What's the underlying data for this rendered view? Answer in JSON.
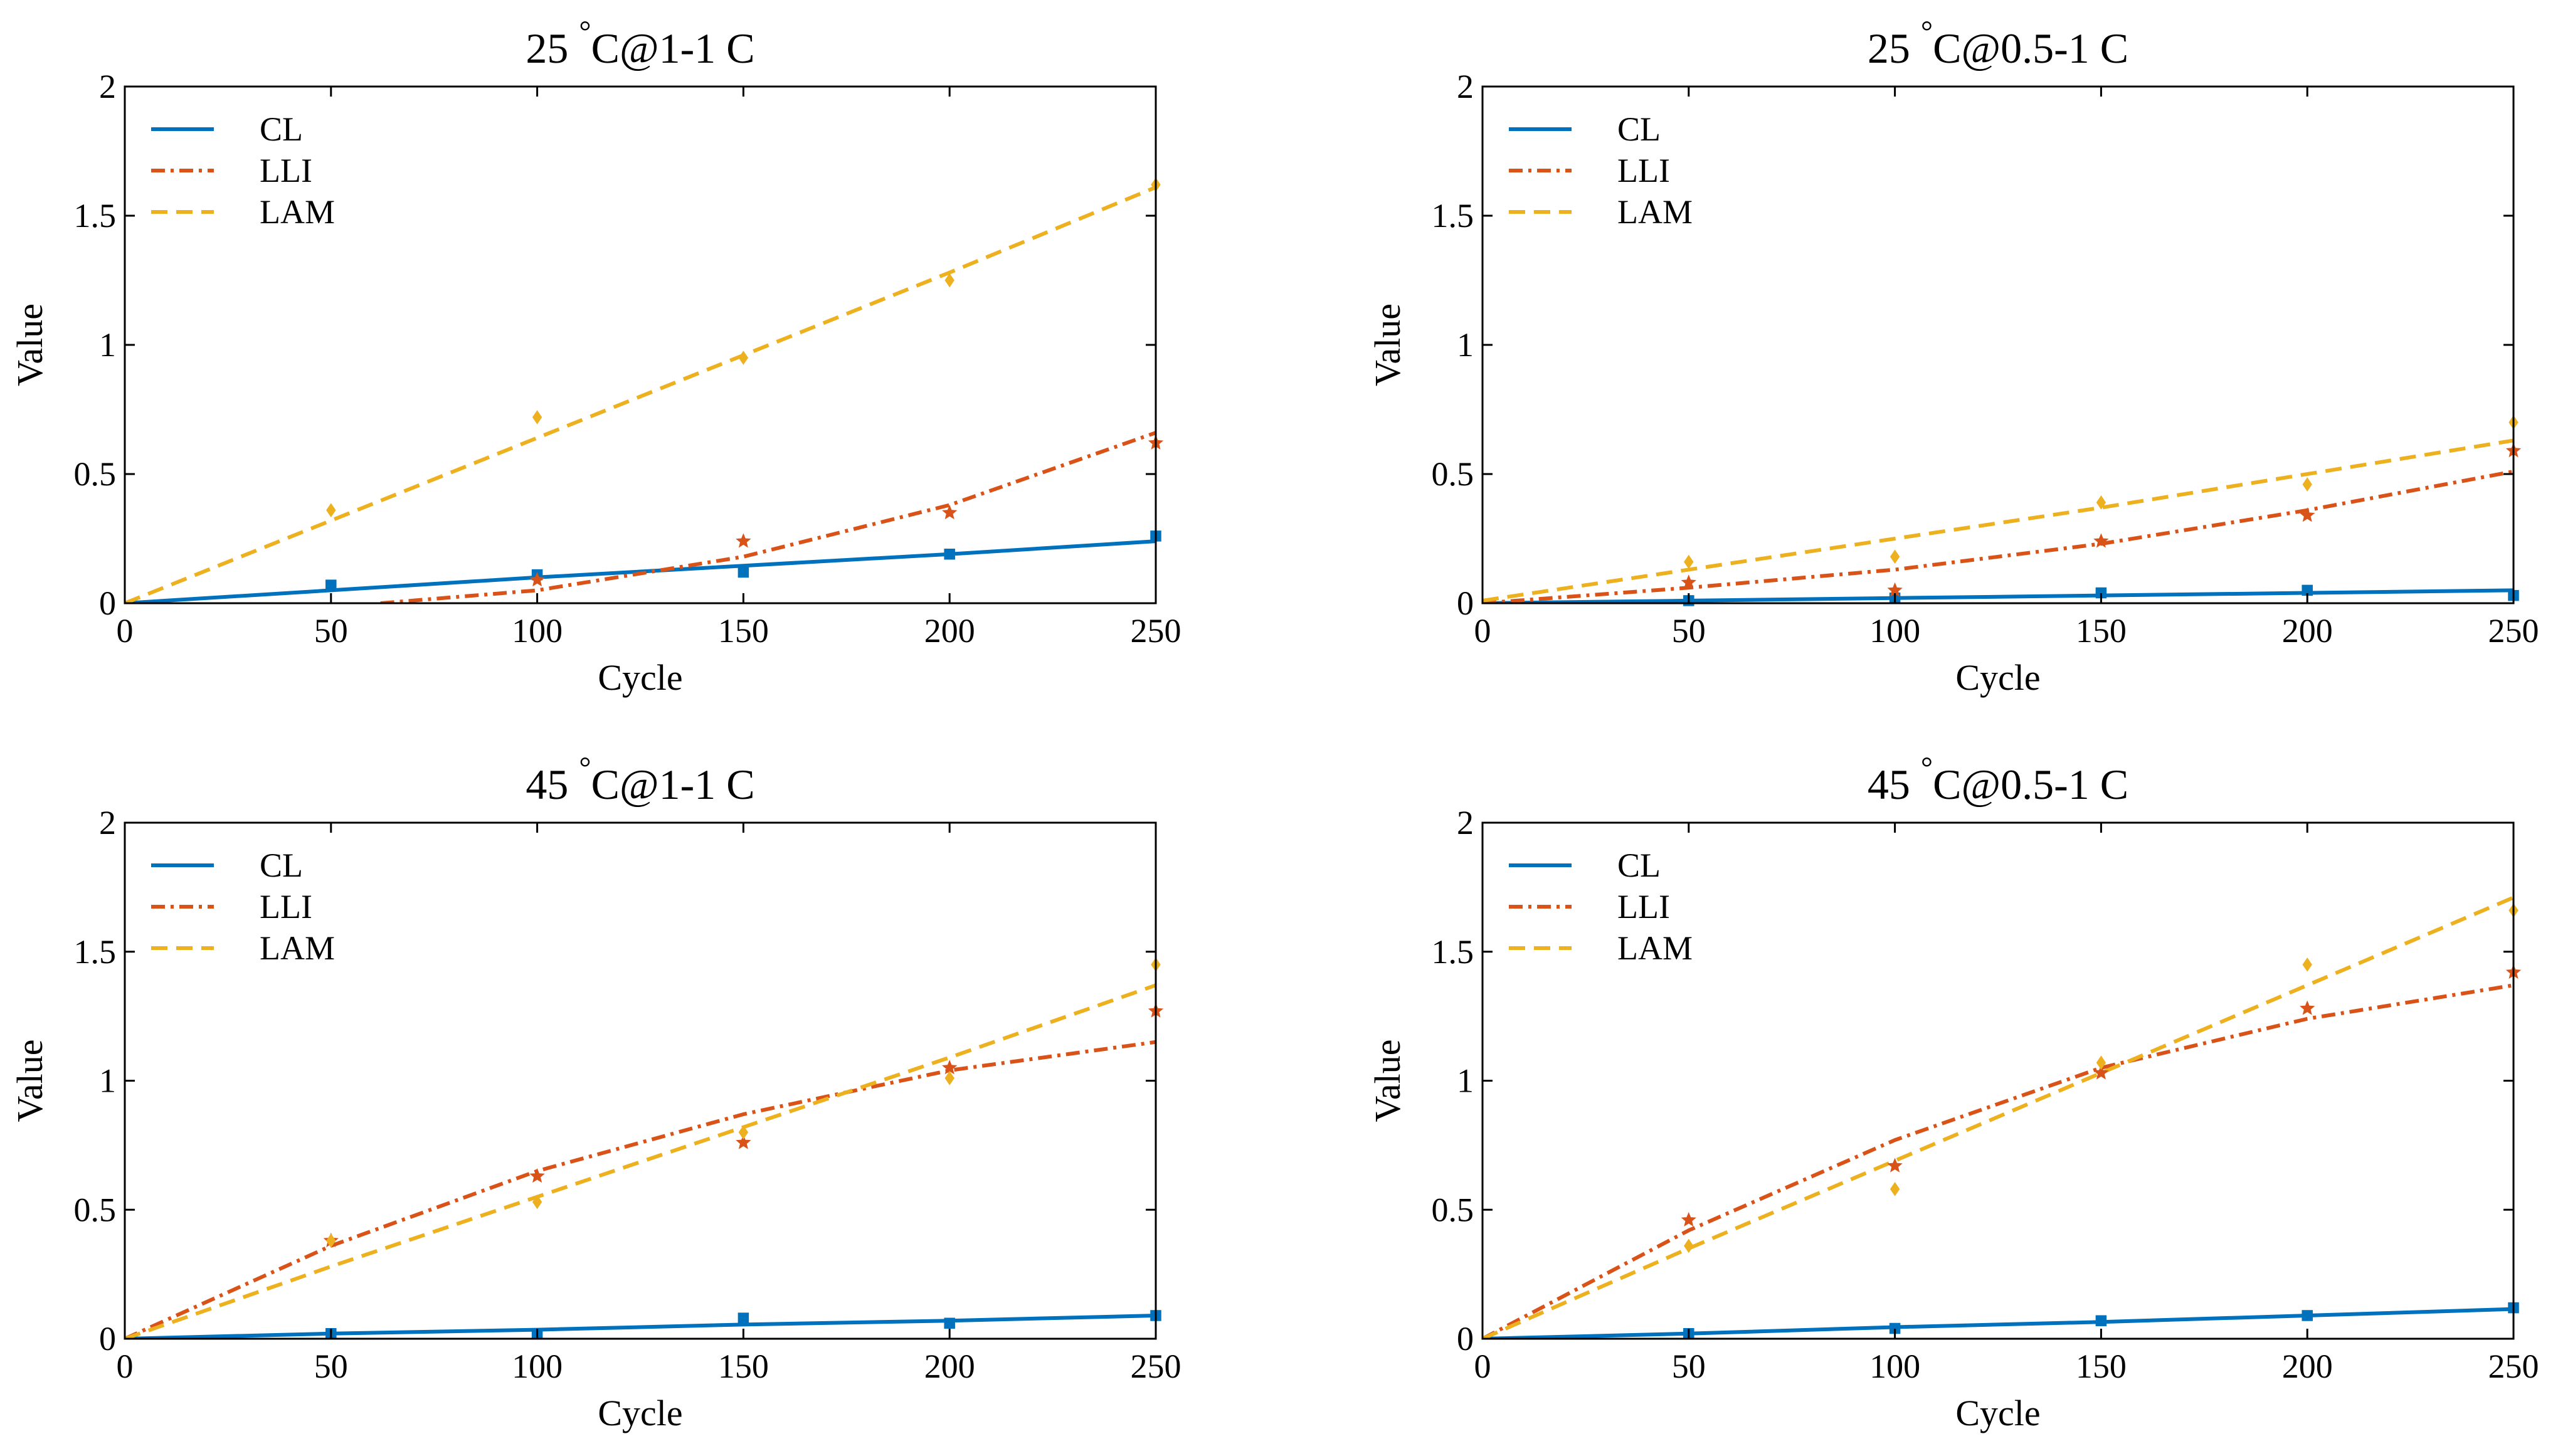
{
  "colors": {
    "CL": "#0072BD",
    "LLI": "#D95319",
    "LAM": "#EDB120"
  },
  "chart_data": [
    {
      "type": "line",
      "title_num": "25",
      "title_deg": "°",
      "title_rest": "C@1-1 C",
      "xlabel": "Cycle",
      "ylabel": "Value",
      "xlim": [
        0,
        250
      ],
      "ylim": [
        0,
        2
      ],
      "xticks": [
        0,
        50,
        100,
        150,
        200,
        250
      ],
      "yticks": [
        0,
        0.5,
        1,
        1.5,
        2
      ],
      "yticklabels": [
        "0",
        "0.5",
        "1",
        "1.5",
        "2"
      ],
      "legend_position": "top-left",
      "series": [
        {
          "name": "CL",
          "style": "solid",
          "marker": "square",
          "fit_x": [
            0,
            50,
            100,
            150,
            200,
            250
          ],
          "fit_y": [
            0,
            0.05,
            0.1,
            0.145,
            0.19,
            0.24
          ],
          "points_x": [
            50,
            100,
            150,
            200,
            250
          ],
          "points_y": [
            0.07,
            0.11,
            0.12,
            0.19,
            0.26
          ]
        },
        {
          "name": "LLI",
          "style": "dashdot",
          "marker": "star",
          "fit_x": [
            62,
            100,
            150,
            200,
            250
          ],
          "fit_y": [
            0,
            0.05,
            0.18,
            0.38,
            0.66
          ],
          "points_x": [
            100,
            150,
            200,
            250
          ],
          "points_y": [
            0.09,
            0.24,
            0.35,
            0.62
          ]
        },
        {
          "name": "LAM",
          "style": "dash",
          "marker": "diamond",
          "fit_x": [
            0,
            50,
            100,
            150,
            200,
            250
          ],
          "fit_y": [
            0,
            0.32,
            0.64,
            0.96,
            1.28,
            1.61
          ],
          "points_x": [
            50,
            100,
            150,
            200,
            250
          ],
          "points_y": [
            0.36,
            0.72,
            0.95,
            1.25,
            1.62
          ]
        }
      ]
    },
    {
      "type": "line",
      "title_num": "25",
      "title_deg": "°",
      "title_rest": "C@0.5-1 C",
      "xlabel": "Cycle",
      "ylabel": "Value",
      "xlim": [
        0,
        250
      ],
      "ylim": [
        0,
        2
      ],
      "xticks": [
        0,
        50,
        100,
        150,
        200,
        250
      ],
      "yticks": [
        0,
        0.5,
        1,
        1.5,
        2
      ],
      "yticklabels": [
        "0",
        "0.5",
        "1",
        "1.5",
        "2"
      ],
      "legend_position": "top-left",
      "series": [
        {
          "name": "CL",
          "style": "solid",
          "marker": "square",
          "fit_x": [
            0,
            50,
            100,
            150,
            200,
            250
          ],
          "fit_y": [
            0,
            0.01,
            0.02,
            0.03,
            0.04,
            0.05
          ],
          "points_x": [
            50,
            100,
            150,
            200,
            250
          ],
          "points_y": [
            0.01,
            0.02,
            0.04,
            0.05,
            0.03
          ]
        },
        {
          "name": "LLI",
          "style": "dashdot",
          "marker": "star",
          "fit_x": [
            0,
            50,
            100,
            150,
            200,
            250
          ],
          "fit_y": [
            0,
            0.06,
            0.13,
            0.23,
            0.36,
            0.51
          ],
          "points_x": [
            50,
            100,
            150,
            200,
            250
          ],
          "points_y": [
            0.08,
            0.05,
            0.24,
            0.34,
            0.59
          ]
        },
        {
          "name": "LAM",
          "style": "dash",
          "marker": "diamond",
          "fit_x": [
            0,
            50,
            100,
            150,
            200,
            250
          ],
          "fit_y": [
            0.01,
            0.13,
            0.25,
            0.37,
            0.5,
            0.63
          ],
          "points_x": [
            50,
            100,
            150,
            200,
            250
          ],
          "points_y": [
            0.16,
            0.18,
            0.39,
            0.46,
            0.7
          ]
        }
      ]
    },
    {
      "type": "line",
      "title_num": "45",
      "title_deg": "°",
      "title_rest": "C@1-1 C",
      "xlabel": "Cycle",
      "ylabel": "Value",
      "xlim": [
        0,
        250
      ],
      "ylim": [
        0,
        2
      ],
      "xticks": [
        0,
        50,
        100,
        150,
        200,
        250
      ],
      "yticks": [
        0,
        0.5,
        1,
        1.5,
        2
      ],
      "yticklabels": [
        "0",
        "0.5",
        "1",
        "1.5",
        "2"
      ],
      "legend_position": "top-left",
      "series": [
        {
          "name": "CL",
          "style": "solid",
          "marker": "square",
          "fit_x": [
            0,
            50,
            100,
            150,
            200,
            250
          ],
          "fit_y": [
            0,
            0.02,
            0.035,
            0.055,
            0.07,
            0.09
          ],
          "points_x": [
            50,
            100,
            150,
            200,
            250
          ],
          "points_y": [
            0.02,
            0.02,
            0.08,
            0.06,
            0.09
          ]
        },
        {
          "name": "LLI",
          "style": "dashdot",
          "marker": "star",
          "fit_x": [
            0,
            50,
            100,
            150,
            200,
            250
          ],
          "fit_y": [
            0,
            0.36,
            0.65,
            0.87,
            1.04,
            1.15
          ],
          "points_x": [
            50,
            100,
            150,
            200,
            250
          ],
          "points_y": [
            0.38,
            0.63,
            0.76,
            1.05,
            1.27
          ]
        },
        {
          "name": "LAM",
          "style": "dash",
          "marker": "diamond",
          "fit_x": [
            0,
            50,
            100,
            150,
            200,
            250
          ],
          "fit_y": [
            0,
            0.28,
            0.55,
            0.82,
            1.09,
            1.37
          ],
          "points_x": [
            50,
            100,
            150,
            200,
            250
          ],
          "points_y": [
            0.38,
            0.53,
            0.8,
            1.01,
            1.45
          ]
        }
      ]
    },
    {
      "type": "line",
      "title_num": "45",
      "title_deg": "°",
      "title_rest": "C@0.5-1 C",
      "xlabel": "Cycle",
      "ylabel": "Value",
      "xlim": [
        0,
        250
      ],
      "ylim": [
        0,
        2
      ],
      "xticks": [
        0,
        50,
        100,
        150,
        200,
        250
      ],
      "yticks": [
        0,
        0.5,
        1,
        1.5,
        2
      ],
      "yticklabels": [
        "0",
        "0.5",
        "1",
        "1.5",
        "2"
      ],
      "legend_position": "top-left",
      "series": [
        {
          "name": "CL",
          "style": "solid",
          "marker": "square",
          "fit_x": [
            0,
            50,
            100,
            150,
            200,
            250
          ],
          "fit_y": [
            0,
            0.02,
            0.045,
            0.065,
            0.09,
            0.115
          ],
          "points_x": [
            50,
            100,
            150,
            200,
            250
          ],
          "points_y": [
            0.02,
            0.04,
            0.07,
            0.09,
            0.12
          ]
        },
        {
          "name": "LLI",
          "style": "dashdot",
          "marker": "star",
          "fit_x": [
            0,
            50,
            100,
            150,
            200,
            250
          ],
          "fit_y": [
            0,
            0.42,
            0.77,
            1.05,
            1.24,
            1.37
          ],
          "points_x": [
            50,
            100,
            150,
            200,
            250
          ],
          "points_y": [
            0.46,
            0.67,
            1.03,
            1.28,
            1.42
          ]
        },
        {
          "name": "LAM",
          "style": "dash",
          "marker": "diamond",
          "fit_x": [
            0,
            50,
            100,
            150,
            200,
            250
          ],
          "fit_y": [
            0,
            0.35,
            0.69,
            1.03,
            1.37,
            1.71
          ],
          "points_x": [
            50,
            100,
            150,
            200,
            250
          ],
          "points_y": [
            0.36,
            0.58,
            1.07,
            1.45,
            1.66
          ]
        }
      ]
    }
  ]
}
